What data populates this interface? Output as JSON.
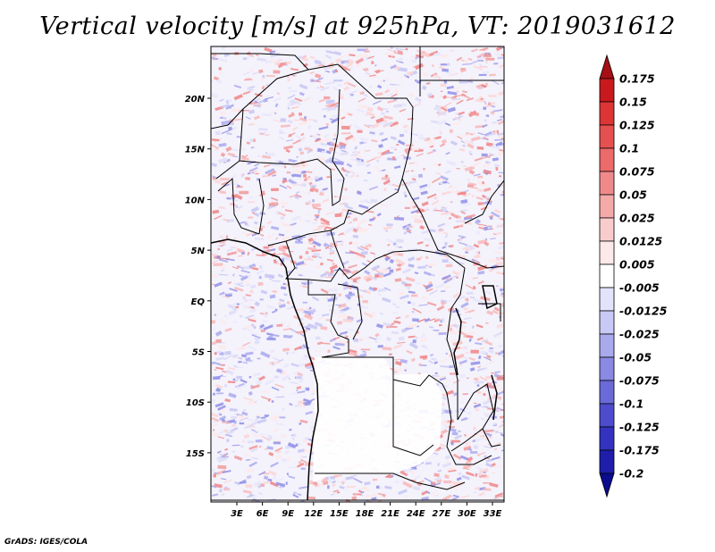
{
  "title": "Vertical velocity [m/s] at 925hPa, VT: 2019031612",
  "footer": "GrADS: IGES/COLA",
  "map": {
    "lon_labels": [
      "3E",
      "6E",
      "9E",
      "12E",
      "15E",
      "18E",
      "21E",
      "24E",
      "27E",
      "30E",
      "33E"
    ],
    "lat_labels": [
      "20N",
      "15N",
      "10N",
      "5N",
      "EQ",
      "5S",
      "10S",
      "15S"
    ]
  },
  "colorbar": {
    "labels": [
      "0.175",
      "0.15",
      "0.125",
      "0.1",
      "0.075",
      "0.05",
      "0.025",
      "0.0125",
      "0.005",
      "-0.005",
      "-0.0125",
      "-0.025",
      "-0.05",
      "-0.075",
      "-0.1",
      "-0.125",
      "-0.175",
      "-0.2"
    ],
    "colors": [
      "#a50f15",
      "#c8191e",
      "#dd3535",
      "#e65050",
      "#ec6a6a",
      "#f08a8a",
      "#f5a9a9",
      "#f9cccc",
      "#fde9e9",
      "#ffffff",
      "#e3e3fb",
      "#c9c9f5",
      "#a9a9ee",
      "#8a8ae4",
      "#6a6ad9",
      "#4c4ccd",
      "#3333bf",
      "#1e1eaa",
      "#0c0c8f"
    ]
  }
}
